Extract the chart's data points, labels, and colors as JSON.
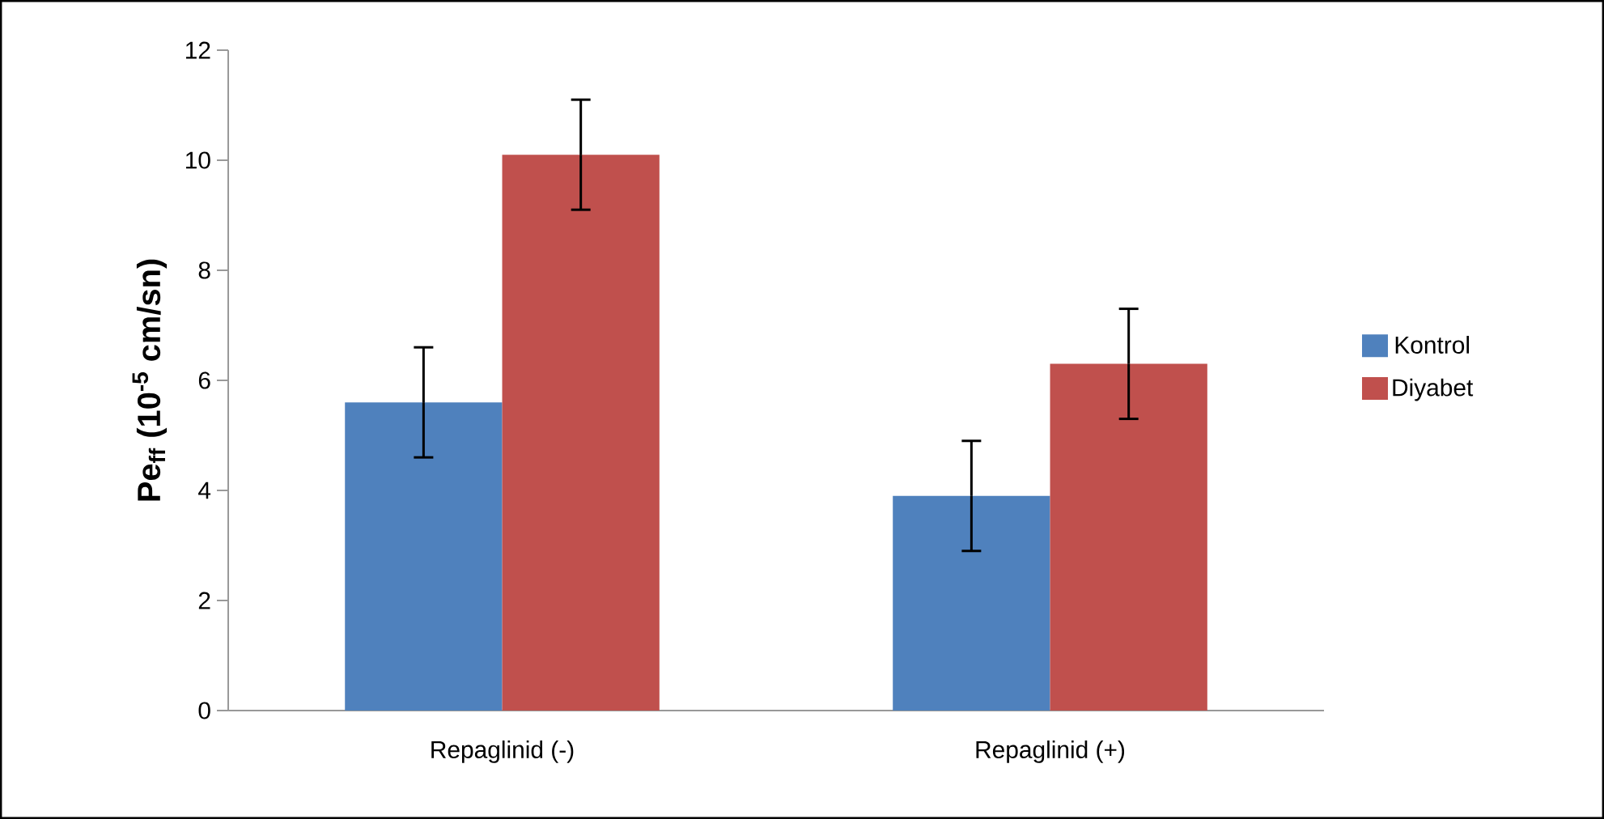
{
  "chart_data": {
    "type": "bar",
    "ylabel": "Pe$_{ff}$ (10$^{-5}$ cm/sn)",
    "categories": [
      "Repaglinid (-)",
      "Repaglinid (+)"
    ],
    "series": [
      {
        "name": "Kontrol",
        "color": "#4f81bd",
        "values": [
          5.6,
          3.9
        ],
        "errors": [
          1.0,
          1.0
        ]
      },
      {
        "name": "Diyabet",
        "color": "#c0504d",
        "values": [
          10.1,
          6.3
        ],
        "errors": [
          1.0,
          1.0
        ]
      }
    ],
    "ylim": [
      0,
      12
    ],
    "yticks": [
      0,
      2,
      4,
      6,
      8,
      10,
      12
    ],
    "grid": false,
    "legend": "right"
  }
}
